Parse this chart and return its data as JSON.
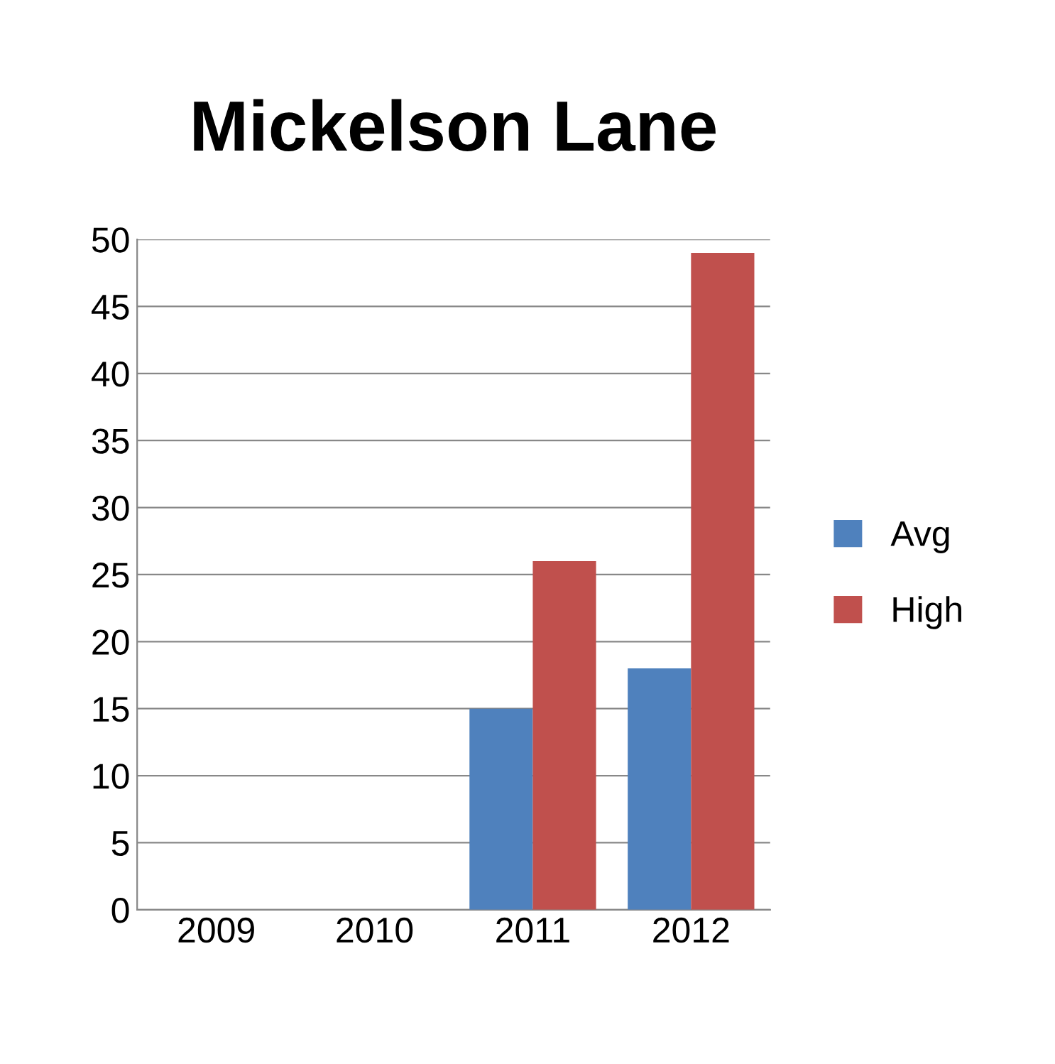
{
  "chart_data": {
    "type": "bar",
    "title": "Mickelson Lane",
    "categories": [
      "2009",
      "2010",
      "2011",
      "2012"
    ],
    "series": [
      {
        "name": "Avg",
        "color": "#4f81bd",
        "values": [
          null,
          null,
          15,
          18
        ]
      },
      {
        "name": "High",
        "color": "#c0504d",
        "values": [
          null,
          null,
          26,
          49
        ]
      }
    ],
    "ylim": [
      0,
      50
    ],
    "yticks": [
      0,
      5,
      10,
      15,
      20,
      25,
      30,
      35,
      40,
      45,
      50
    ],
    "grid": "y",
    "legend": "right"
  }
}
